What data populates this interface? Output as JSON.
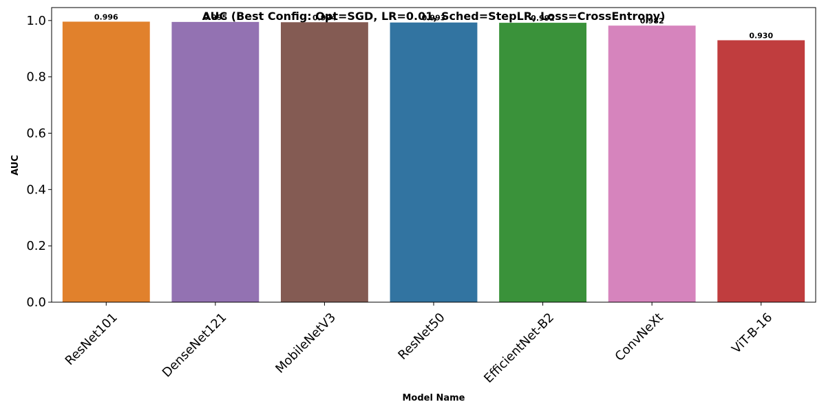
{
  "chart_data": {
    "type": "bar",
    "title": "AUC (Best Config: Opt=SGD, LR=0.01, Sched=StepLR, Loss=CrossEntropy)",
    "xlabel": "Model Name",
    "ylabel": "AUC",
    "categories": [
      "ResNet101",
      "DenseNet121",
      "MobileNetV3",
      "ResNet50",
      "EfficientNet-B2",
      "ConvNeXt",
      "ViT-B-16"
    ],
    "values": [
      0.996,
      0.995,
      0.994,
      0.993,
      0.992,
      0.982,
      0.93
    ],
    "data_labels": [
      "0.996",
      "0.995",
      "0.994",
      "0.993",
      "0.992",
      "0.982",
      "0.930"
    ],
    "colors": [
      "#e1812c",
      "#9372b2",
      "#845b53",
      "#3274a1",
      "#3a923a",
      "#d684bd",
      "#c03d3e"
    ],
    "ylim": [
      0,
      1.046
    ],
    "yticks": [
      0.0,
      0.2,
      0.4,
      0.6,
      0.8,
      1.0
    ],
    "ytick_labels": [
      "0.0",
      "0.2",
      "0.4",
      "0.6",
      "0.8",
      "1.0"
    ],
    "grid": false,
    "legend": "none"
  }
}
